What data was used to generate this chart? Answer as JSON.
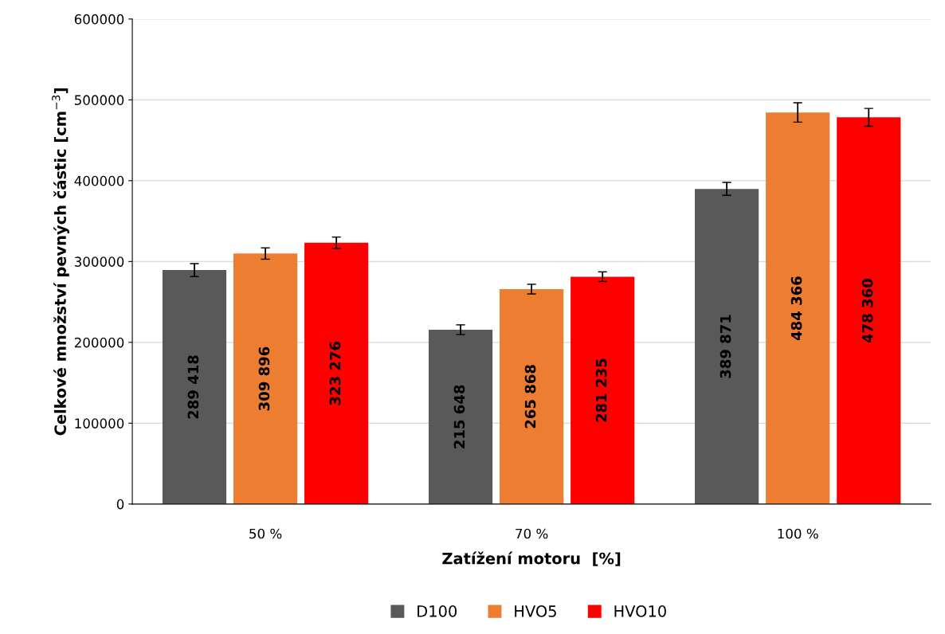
{
  "chart_data": {
    "type": "bar",
    "xlabel": "Zatížení motoru  [%]",
    "ylabel": "Celkové množství pevných částic [cm$^{−3}$]",
    "categories": [
      "50 %",
      "70 %",
      "100 %"
    ],
    "series": [
      {
        "name": "D100",
        "color": "#595959",
        "values": [
          289418,
          215648,
          389871
        ],
        "errors": [
          8000,
          6000,
          8000
        ],
        "value_labels": [
          "289 418",
          "215 648",
          "389 871"
        ]
      },
      {
        "name": "HVO5",
        "color": "#ed7d31",
        "values": [
          309896,
          265868,
          484366
        ],
        "errors": [
          7000,
          6000,
          12000
        ],
        "value_labels": [
          "309 896",
          "265 868",
          "484 366"
        ]
      },
      {
        "name": "HVO10",
        "color": "#ff0000",
        "values": [
          323276,
          281235,
          478360
        ],
        "errors": [
          7000,
          6000,
          11000
        ],
        "value_labels": [
          "323 276",
          "281 235",
          "478 360"
        ]
      }
    ],
    "ylim": [
      0,
      600000
    ],
    "yticks": [
      0,
      100000,
      200000,
      300000,
      400000,
      500000,
      600000
    ],
    "grid": "y",
    "legend": "bottom"
  }
}
